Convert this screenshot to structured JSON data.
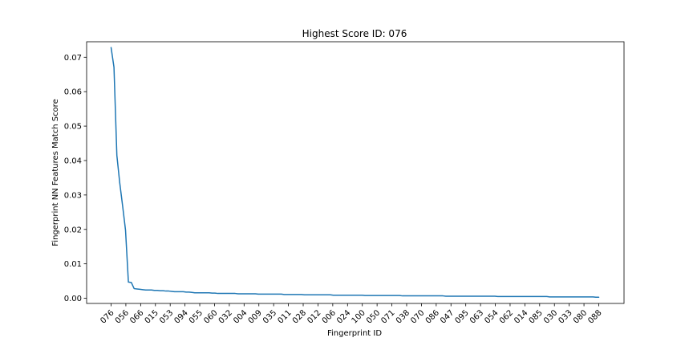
{
  "chart_data": {
    "type": "line",
    "title": "Highest Score ID: 076",
    "xlabel": "Fingerprint ID",
    "ylabel": "Fingerprint NN Features Match Score",
    "ylim": [
      -0.0015,
      0.0745
    ],
    "yticks": [
      0.0,
      0.01,
      0.02,
      0.03,
      0.04,
      0.05,
      0.06,
      0.07
    ],
    "ytick_labels": [
      "0.00",
      "0.01",
      "0.02",
      "0.03",
      "0.04",
      "0.05",
      "0.06",
      "0.07"
    ],
    "xtick_labels": [
      "076",
      "056",
      "066",
      "015",
      "053",
      "094",
      "055",
      "060",
      "032",
      "004",
      "009",
      "035",
      "011",
      "028",
      "012",
      "006",
      "024",
      "100",
      "050",
      "071",
      "038",
      "070",
      "086",
      "047",
      "095",
      "063",
      "054",
      "062",
      "014",
      "085",
      "030",
      "033",
      "080",
      "088"
    ],
    "grid": false,
    "line_color": "#1f77b4",
    "series": [
      {
        "values": [
          0.0728,
          0.0671,
          0.0415,
          0.0335,
          0.0268,
          0.0198,
          0.0047,
          0.0046,
          0.0028,
          0.0027,
          0.0026,
          0.0025,
          0.0024,
          0.0024,
          0.0024,
          0.0023,
          0.0023,
          0.0022,
          0.0022,
          0.0021,
          0.0021,
          0.002,
          0.0019,
          0.0019,
          0.0019,
          0.0019,
          0.0018,
          0.0018,
          0.0017,
          0.0016,
          0.0016,
          0.0016,
          0.0016,
          0.0016,
          0.0016,
          0.0015,
          0.0015,
          0.0014,
          0.0014,
          0.0014,
          0.0014,
          0.0014,
          0.0014,
          0.0014,
          0.0013,
          0.0013,
          0.0013,
          0.0013,
          0.0013,
          0.0013,
          0.0013,
          0.0012,
          0.0012,
          0.0012,
          0.0012,
          0.0012,
          0.0012,
          0.0012,
          0.0012,
          0.0012,
          0.0011,
          0.0011,
          0.0011,
          0.0011,
          0.0011,
          0.0011,
          0.0011,
          0.001,
          0.001,
          0.001,
          0.001,
          0.001,
          0.001,
          0.001,
          0.001,
          0.001,
          0.001,
          0.0009,
          0.0009,
          0.0009,
          0.0009,
          0.0009,
          0.0009,
          0.0009,
          0.0009,
          0.0009,
          0.0009,
          0.0009,
          0.0008,
          0.0008,
          0.0008,
          0.0008,
          0.0008,
          0.0008,
          0.0008,
          0.0008,
          0.0008,
          0.0008,
          0.0008,
          0.0008,
          0.0008,
          0.0007,
          0.0007,
          0.0007,
          0.0007,
          0.0007,
          0.0007,
          0.0007,
          0.0007,
          0.0007,
          0.0007,
          0.0007,
          0.0007,
          0.0007,
          0.0007,
          0.0007,
          0.0006,
          0.0006,
          0.0006,
          0.0006,
          0.0006,
          0.0006,
          0.0006,
          0.0006,
          0.0006,
          0.0006,
          0.0006,
          0.0006,
          0.0006,
          0.0006,
          0.0006,
          0.0006,
          0.0006,
          0.0006,
          0.0005,
          0.0005,
          0.0005,
          0.0005,
          0.0005,
          0.0005,
          0.0005,
          0.0005,
          0.0005,
          0.0005,
          0.0005,
          0.0005,
          0.0005,
          0.0005,
          0.0005,
          0.0005,
          0.0005,
          0.0005,
          0.0004,
          0.0004,
          0.0004,
          0.0004,
          0.0004,
          0.0004,
          0.0004,
          0.0004,
          0.0004,
          0.0004,
          0.0004,
          0.0004,
          0.0004,
          0.0004,
          0.0004,
          0.0004,
          0.0003,
          0.0003
        ]
      }
    ]
  }
}
